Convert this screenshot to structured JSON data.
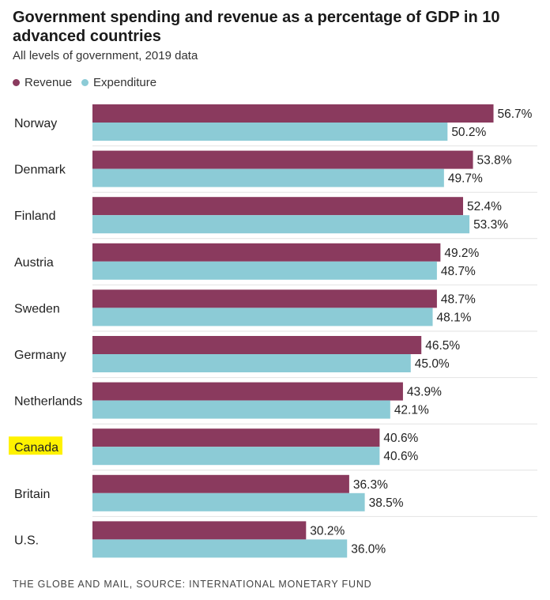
{
  "chart_data": {
    "type": "bar",
    "orientation": "horizontal",
    "title": "Government spending and revenue as a percentage of GDP in 10 advanced countries",
    "subtitle": "All levels of government, 2019 data",
    "categories": [
      "Norway",
      "Denmark",
      "Finland",
      "Austria",
      "Sweden",
      "Germany",
      "Netherlands",
      "Canada",
      "Britain",
      "U.S."
    ],
    "highlighted_category": "Canada",
    "series": [
      {
        "name": "Revenue",
        "color": "#8a3a5e",
        "values": [
          56.7,
          53.8,
          52.4,
          49.2,
          48.7,
          46.5,
          43.9,
          40.6,
          36.3,
          30.2
        ]
      },
      {
        "name": "Expenditure",
        "color": "#8ccbd6",
        "values": [
          50.2,
          49.7,
          53.3,
          48.7,
          48.1,
          45.0,
          42.1,
          40.6,
          38.5,
          36.0
        ]
      }
    ],
    "value_suffix": "%",
    "legend_position": "top-left",
    "grid": false,
    "xlim": [
      0,
      60
    ],
    "highlight_color": "#fff200",
    "source": "THE GLOBE AND MAIL, SOURCE: INTERNATIONAL MONETARY FUND"
  }
}
